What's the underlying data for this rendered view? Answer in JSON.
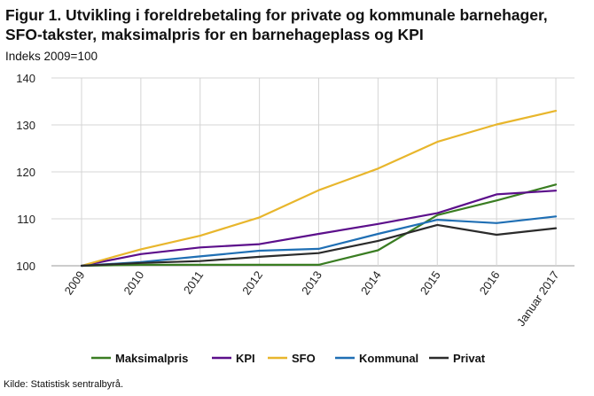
{
  "title": "Figur 1. Utvikling i foreldrebetaling for private og kommunale barnehager, SFO-takster, maksimalpris for en barnehageplass og KPI",
  "subtitle": "Indeks 2009=100",
  "source": "Kilde: Statistisk sentralbyrå.",
  "chart_data": {
    "type": "line",
    "title": "Figur 1. Utvikling i foreldrebetaling for private og kommunale barnehager, SFO-takster, maksimalpris for en barnehageplass og KPI",
    "ylabel": "Indeks 2009=100",
    "xlabel": "",
    "ylim": [
      100,
      140
    ],
    "yticks": [
      100,
      110,
      120,
      130,
      140
    ],
    "grid": true,
    "legend": "bottom",
    "categories": [
      "2009",
      "2010",
      "2011",
      "2012",
      "2013",
      "2014",
      "2015",
      "2016",
      "Januar 2017"
    ],
    "series": [
      {
        "name": "Maksimalpris",
        "color": "#3a7d22",
        "values": [
          100,
          100.2,
          100.2,
          100.2,
          100.2,
          103.3,
          110.8,
          113.9,
          117.3
        ]
      },
      {
        "name": "KPI",
        "color": "#5c0f8b",
        "values": [
          100,
          102.5,
          103.9,
          104.6,
          106.8,
          108.9,
          111.2,
          115.2,
          116.0
        ]
      },
      {
        "name": "SFO",
        "color": "#e8b62c",
        "values": [
          100,
          103.5,
          106.4,
          110.3,
          116.1,
          120.7,
          126.4,
          130.1,
          133.0
        ]
      },
      {
        "name": "Kommunal",
        "color": "#1f6fb4",
        "values": [
          100,
          100.8,
          102.0,
          103.2,
          103.6,
          106.8,
          109.8,
          109.1,
          110.5
        ]
      },
      {
        "name": "Privat",
        "color": "#2b2b2b",
        "values": [
          100,
          100.6,
          101.0,
          101.9,
          102.7,
          105.3,
          108.7,
          106.6,
          108.0
        ]
      }
    ]
  }
}
